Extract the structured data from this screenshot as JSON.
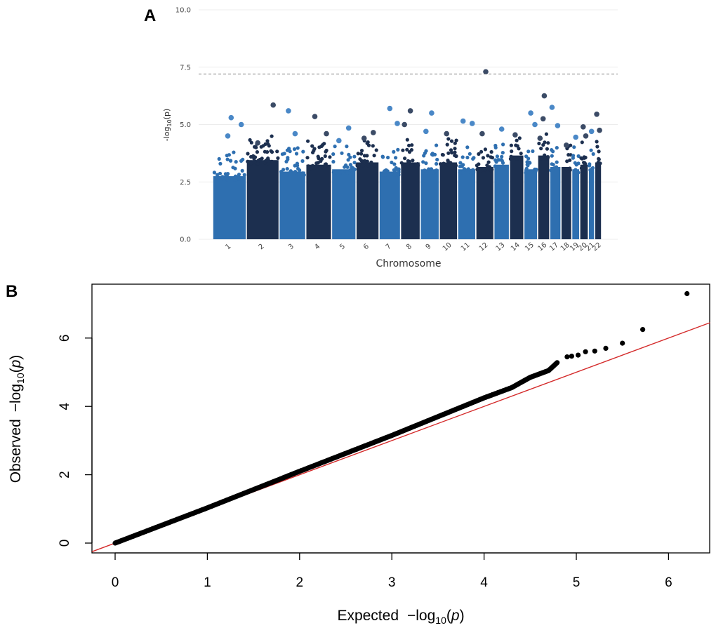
{
  "chart_data": [
    {
      "panel": "A",
      "type": "scatter",
      "subtype": "manhattan",
      "title": "",
      "xlabel": "Chromosome",
      "ylabel": "-log10(p)",
      "ylim": [
        0,
        10
      ],
      "yticks": [
        0.0,
        2.5,
        5.0,
        7.5,
        10.0
      ],
      "ytick_labels": [
        "0.0",
        "2.5",
        "5.0",
        "7.5",
        "10.0"
      ],
      "significance_threshold": 7.2,
      "grid": true,
      "colors": [
        "#2e6fb0",
        "#1c2f4f"
      ],
      "highlight_colors": [
        "#4a88c7",
        "#3b4b66"
      ],
      "chromosomes": [
        "1",
        "2",
        "3",
        "4",
        "5",
        "6",
        "7",
        "8",
        "9",
        "10",
        "11",
        "12",
        "13",
        "14",
        "15",
        "16",
        "17",
        "18",
        "19",
        "20",
        "21",
        "22"
      ],
      "chromosome_lengths": [
        249,
        243,
        198,
        191,
        181,
        171,
        159,
        146,
        141,
        136,
        135,
        134,
        115,
        107,
        102,
        90,
        83,
        80,
        59,
        64,
        47,
        51
      ],
      "dense_band_height": [
        3.0,
        3.7,
        3.2,
        3.5,
        3.3,
        3.6,
        3.2,
        3.6,
        3.3,
        3.6,
        3.3,
        3.4,
        3.5,
        3.9,
        3.3,
        3.9,
        3.4,
        3.4,
        3.3,
        3.5,
        3.3,
        3.6
      ],
      "peaks": [
        {
          "chr": "1",
          "pos": 0.55,
          "value": 5.3
        },
        {
          "chr": "1",
          "pos": 0.85,
          "value": 5.0
        },
        {
          "chr": "1",
          "pos": 0.45,
          "value": 4.5
        },
        {
          "chr": "2",
          "pos": 0.82,
          "value": 5.85
        },
        {
          "chr": "2",
          "pos": 0.35,
          "value": 4.2
        },
        {
          "chr": "3",
          "pos": 0.35,
          "value": 5.6
        },
        {
          "chr": "3",
          "pos": 0.6,
          "value": 4.6
        },
        {
          "chr": "4",
          "pos": 0.35,
          "value": 5.35
        },
        {
          "chr": "4",
          "pos": 0.8,
          "value": 4.6
        },
        {
          "chr": "5",
          "pos": 0.7,
          "value": 4.85
        },
        {
          "chr": "5",
          "pos": 0.3,
          "value": 4.3
        },
        {
          "chr": "6",
          "pos": 0.75,
          "value": 4.65
        },
        {
          "chr": "6",
          "pos": 0.35,
          "value": 4.4
        },
        {
          "chr": "7",
          "pos": 0.5,
          "value": 5.7
        },
        {
          "chr": "7",
          "pos": 0.85,
          "value": 5.05
        },
        {
          "chr": "8",
          "pos": 0.5,
          "value": 5.6
        },
        {
          "chr": "8",
          "pos": 0.2,
          "value": 5.0
        },
        {
          "chr": "9",
          "pos": 0.6,
          "value": 5.5
        },
        {
          "chr": "9",
          "pos": 0.3,
          "value": 4.7
        },
        {
          "chr": "10",
          "pos": 0.4,
          "value": 4.6
        },
        {
          "chr": "11",
          "pos": 0.3,
          "value": 5.15
        },
        {
          "chr": "11",
          "pos": 0.8,
          "value": 5.05
        },
        {
          "chr": "12",
          "pos": 0.55,
          "value": 7.3
        },
        {
          "chr": "12",
          "pos": 0.35,
          "value": 4.6
        },
        {
          "chr": "13",
          "pos": 0.5,
          "value": 4.8
        },
        {
          "chr": "14",
          "pos": 0.4,
          "value": 4.55
        },
        {
          "chr": "15",
          "pos": 0.5,
          "value": 5.5
        },
        {
          "chr": "15",
          "pos": 0.8,
          "value": 5.0
        },
        {
          "chr": "16",
          "pos": 0.45,
          "value": 5.25
        },
        {
          "chr": "16",
          "pos": 0.55,
          "value": 6.25
        },
        {
          "chr": "16",
          "pos": 0.2,
          "value": 4.4
        },
        {
          "chr": "17",
          "pos": 0.2,
          "value": 5.75
        },
        {
          "chr": "17",
          "pos": 0.7,
          "value": 4.95
        },
        {
          "chr": "18",
          "pos": 0.5,
          "value": 4.1
        },
        {
          "chr": "19",
          "pos": 0.5,
          "value": 4.45
        },
        {
          "chr": "20",
          "pos": 0.4,
          "value": 4.9
        },
        {
          "chr": "20",
          "pos": 0.7,
          "value": 4.5
        },
        {
          "chr": "21",
          "pos": 0.5,
          "value": 4.7
        },
        {
          "chr": "22",
          "pos": 0.3,
          "value": 5.45
        },
        {
          "chr": "22",
          "pos": 0.7,
          "value": 4.75
        }
      ]
    },
    {
      "panel": "B",
      "type": "scatter",
      "subtype": "qq",
      "title": "",
      "xlabel": "Expected  -log10(p)",
      "ylabel": "Observed  -log10(p)",
      "xlim": [
        -0.25,
        6.45
      ],
      "ylim": [
        -0.3,
        7.6
      ],
      "xticks": [
        0,
        1,
        2,
        3,
        4,
        5,
        6
      ],
      "yticks": [
        0,
        2,
        4,
        6
      ],
      "reference_line": {
        "slope": 1,
        "intercept": 0,
        "color": "#cc2a2a"
      },
      "point_color": "#000000",
      "curve": [
        {
          "x": 0.0,
          "y": 0.0
        },
        {
          "x": 1.0,
          "y": 1.03
        },
        {
          "x": 2.0,
          "y": 2.1
        },
        {
          "x": 3.0,
          "y": 3.15
        },
        {
          "x": 3.5,
          "y": 3.7
        },
        {
          "x": 4.0,
          "y": 4.25
        },
        {
          "x": 4.3,
          "y": 4.55
        },
        {
          "x": 4.5,
          "y": 4.85
        },
        {
          "x": 4.7,
          "y": 5.05
        },
        {
          "x": 4.8,
          "y": 5.3
        }
      ],
      "tail_points": [
        {
          "x": 4.9,
          "y": 5.45
        },
        {
          "x": 4.95,
          "y": 5.47
        },
        {
          "x": 5.02,
          "y": 5.5
        },
        {
          "x": 5.1,
          "y": 5.6
        },
        {
          "x": 5.2,
          "y": 5.62
        },
        {
          "x": 5.32,
          "y": 5.7
        },
        {
          "x": 5.5,
          "y": 5.85
        },
        {
          "x": 5.72,
          "y": 6.25
        },
        {
          "x": 6.2,
          "y": 7.3
        }
      ]
    }
  ],
  "panel_labels": {
    "a": "A",
    "b": "B"
  },
  "panel_a": {
    "xlabel": "Chromosome",
    "ylabel_main": "-log",
    "ylabel_sub": "10",
    "ylabel_end": "(p)"
  },
  "panel_b": {
    "xlabel_word": "Expected",
    "ylabel_word": "Observed",
    "log_prefix": "−log",
    "log_sub": "10",
    "log_open": "(",
    "log_var": "p",
    "log_close": ")"
  }
}
